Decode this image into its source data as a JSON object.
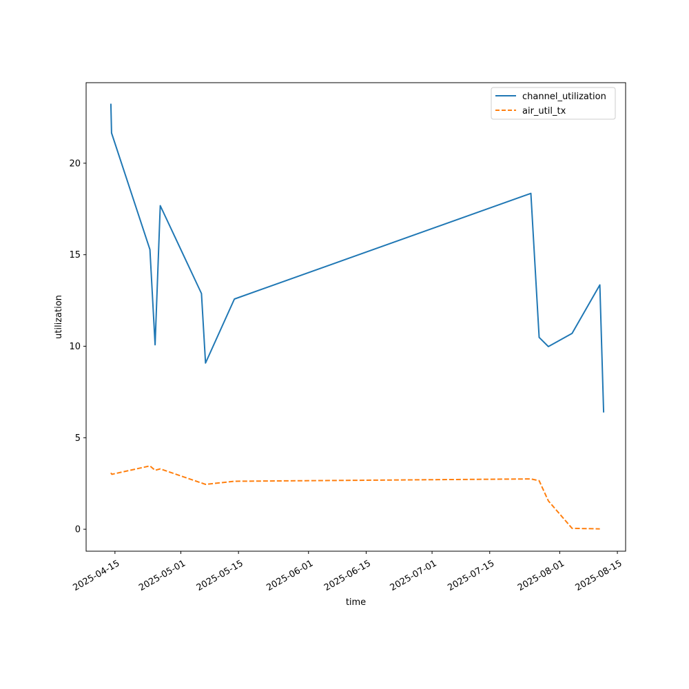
{
  "chart_data": {
    "type": "line",
    "title": "",
    "xlabel": "time",
    "ylabel": "utilization",
    "x_type": "date",
    "xlim": [
      "2025-04-08",
      "2025-08-17"
    ],
    "ylim": [
      -1.2,
      24.4
    ],
    "x_ticks": [
      "2025-04-15",
      "2025-05-01",
      "2025-05-15",
      "2025-06-01",
      "2025-06-15",
      "2025-07-01",
      "2025-07-15",
      "2025-08-01",
      "2025-08-15"
    ],
    "y_ticks": [
      0,
      5,
      10,
      15,
      20
    ],
    "grid": false,
    "legend_position": "top-right",
    "series": [
      {
        "name": "channel_utilization",
        "color": "#1f77b4",
        "dash": "solid",
        "points": [
          [
            "2025-04-14T00:00",
            23.25
          ],
          [
            "2025-04-14T04:00",
            21.65
          ],
          [
            "2025-04-23T12:00",
            15.28
          ],
          [
            "2025-04-24T18:00",
            10.08
          ],
          [
            "2025-04-26T00:00",
            17.68
          ],
          [
            "2025-05-06T00:00",
            12.88
          ],
          [
            "2025-05-07T00:00",
            9.08
          ],
          [
            "2025-05-14T00:00",
            12.58
          ],
          [
            "2025-07-25T00:00",
            18.35
          ],
          [
            "2025-07-27T00:00",
            10.48
          ],
          [
            "2025-07-29T06:00",
            9.98
          ],
          [
            "2025-08-04T00:00",
            10.7
          ],
          [
            "2025-08-10T18:00",
            13.35
          ],
          [
            "2025-08-11T16:00",
            6.38
          ]
        ]
      },
      {
        "name": "air_util_tx",
        "color": "#ff7f0e",
        "dash": "dashed",
        "points": [
          [
            "2025-04-14T00:00",
            3.08
          ],
          [
            "2025-04-14T06:00",
            3.0
          ],
          [
            "2025-04-23T12:00",
            3.46
          ],
          [
            "2025-04-24T18:00",
            3.22
          ],
          [
            "2025-04-26T00:00",
            3.3
          ],
          [
            "2025-05-07T00:00",
            2.45
          ],
          [
            "2025-05-14T00:00",
            2.62
          ],
          [
            "2025-07-25T00:00",
            2.75
          ],
          [
            "2025-07-27T00:00",
            2.65
          ],
          [
            "2025-07-29T06:00",
            1.55
          ],
          [
            "2025-08-04T00:00",
            0.05
          ],
          [
            "2025-08-10T18:00",
            0.02
          ]
        ]
      }
    ]
  }
}
